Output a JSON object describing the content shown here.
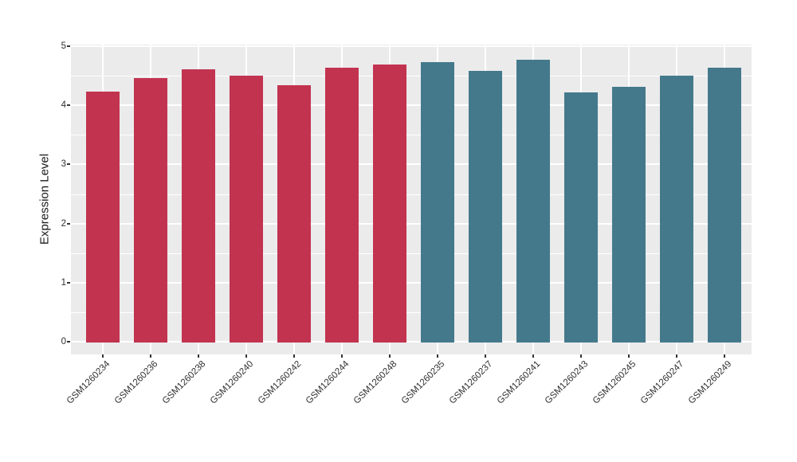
{
  "chart_data": {
    "type": "bar",
    "title": "",
    "xlabel": "",
    "ylabel": "Expression Level",
    "ylim": [
      0,
      5
    ],
    "yticks": [
      0,
      1,
      2,
      3,
      4,
      5
    ],
    "grid": "white major gridlines at integers and category centers, white minor gridlines at 0.5 steps",
    "legend": "none",
    "panel_background": "#EBEBEB",
    "grid_color": "#FFFFFF",
    "tick_text_color": "#303030",
    "group_colors": {
      "group1": "#C23350",
      "group2": "#44798C"
    },
    "bars": [
      {
        "label": "GSM1260234",
        "value": 4.25,
        "group": "group1"
      },
      {
        "label": "GSM1260236",
        "value": 4.47,
        "group": "group1"
      },
      {
        "label": "GSM1260238",
        "value": 4.62,
        "group": "group1"
      },
      {
        "label": "GSM1260240",
        "value": 4.52,
        "group": "group1"
      },
      {
        "label": "GSM1260242",
        "value": 4.35,
        "group": "group1"
      },
      {
        "label": "GSM1260244",
        "value": 4.65,
        "group": "group1"
      },
      {
        "label": "GSM1260248",
        "value": 4.7,
        "group": "group1"
      },
      {
        "label": "GSM1260235",
        "value": 4.75,
        "group": "group2"
      },
      {
        "label": "GSM1260237",
        "value": 4.59,
        "group": "group2"
      },
      {
        "label": "GSM1260241",
        "value": 4.78,
        "group": "group2"
      },
      {
        "label": "GSM1260243",
        "value": 4.23,
        "group": "group2"
      },
      {
        "label": "GSM1260245",
        "value": 4.33,
        "group": "group2"
      },
      {
        "label": "GSM1260247",
        "value": 4.51,
        "group": "group2"
      },
      {
        "label": "GSM1260249",
        "value": 4.65,
        "group": "group2"
      }
    ]
  }
}
